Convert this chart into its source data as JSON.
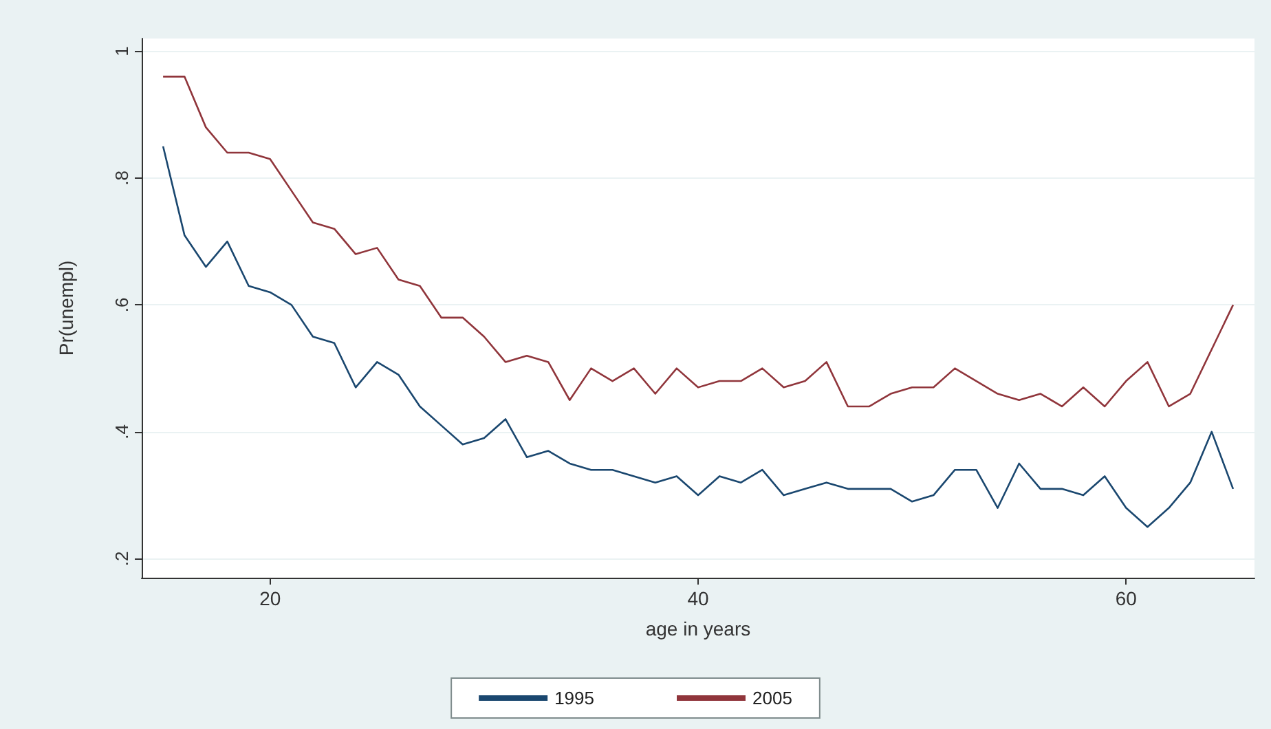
{
  "chart_data": {
    "type": "line",
    "xlabel": "age in years",
    "ylabel": "Pr(unempl)",
    "x": [
      15,
      16,
      17,
      18,
      19,
      20,
      21,
      22,
      23,
      24,
      25,
      26,
      27,
      28,
      29,
      30,
      31,
      32,
      33,
      34,
      35,
      36,
      37,
      38,
      39,
      40,
      41,
      42,
      43,
      44,
      45,
      46,
      47,
      48,
      49,
      50,
      51,
      52,
      53,
      54,
      55,
      56,
      57,
      58,
      59,
      60,
      61,
      62,
      63,
      64,
      65
    ],
    "series": [
      {
        "name": "1995",
        "color": "#1a476f",
        "values": [
          0.85,
          0.71,
          0.66,
          0.7,
          0.63,
          0.62,
          0.6,
          0.55,
          0.54,
          0.47,
          0.51,
          0.49,
          0.44,
          0.41,
          0.38,
          0.39,
          0.42,
          0.36,
          0.37,
          0.35,
          0.34,
          0.34,
          0.33,
          0.32,
          0.33,
          0.3,
          0.33,
          0.32,
          0.34,
          0.3,
          0.31,
          0.32,
          0.31,
          0.31,
          0.31,
          0.29,
          0.3,
          0.34,
          0.34,
          0.28,
          0.35,
          0.31,
          0.31,
          0.3,
          0.33,
          0.28,
          0.25,
          0.28,
          0.32,
          0.4,
          0.31
        ]
      },
      {
        "name": "2005",
        "color": "#90353b",
        "values": [
          0.96,
          0.96,
          0.88,
          0.84,
          0.84,
          0.83,
          0.78,
          0.73,
          0.72,
          0.68,
          0.69,
          0.64,
          0.63,
          0.58,
          0.58,
          0.55,
          0.51,
          0.52,
          0.51,
          0.45,
          0.5,
          0.48,
          0.5,
          0.46,
          0.5,
          0.47,
          0.48,
          0.48,
          0.5,
          0.47,
          0.48,
          0.51,
          0.44,
          0.44,
          0.46,
          0.47,
          0.47,
          0.5,
          0.48,
          0.46,
          0.45,
          0.46,
          0.44,
          0.47,
          0.44,
          0.48,
          0.51,
          0.44,
          0.46,
          0.53,
          0.6
        ]
      }
    ],
    "xlim": [
      14,
      66
    ],
    "xticks": [
      20,
      40,
      60
    ],
    "ylim": [
      0.17,
      1.02
    ],
    "yticks": [
      {
        "value": 0.2,
        "label": ".2"
      },
      {
        "value": 0.4,
        "label": ".4"
      },
      {
        "value": 0.6,
        "label": ".6"
      },
      {
        "value": 0.8,
        "label": ".8"
      },
      {
        "value": 1,
        "label": "1"
      }
    ],
    "grid": "y",
    "legend": "bottom",
    "marker": "none",
    "line_style": "solid"
  }
}
